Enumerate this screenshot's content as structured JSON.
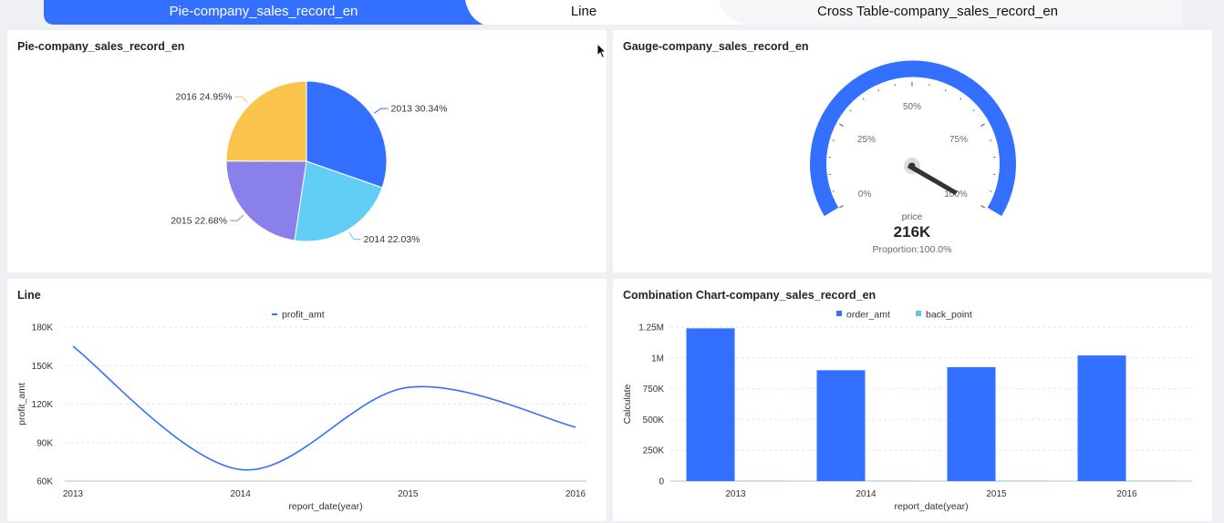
{
  "tabs": [
    {
      "label": "Pie-company_sales_record_en",
      "active": true
    },
    {
      "label": "Line",
      "active": false
    },
    {
      "label": "Cross Table-company_sales_record_en",
      "active": false
    }
  ],
  "colors": {
    "accent": "#3370ff",
    "tab_active": "#3370ff"
  },
  "cards": {
    "pie": {
      "title": "Pie-company_sales_record_en"
    },
    "gauge": {
      "title": "Gauge-company_sales_record_en",
      "tick_labels": [
        "0%",
        "25%",
        "50%",
        "75%",
        "100%"
      ],
      "metric_label": "price",
      "value_text": "216K",
      "proportion_text": "Proportion:100.0%"
    },
    "line": {
      "title": "Line"
    },
    "combo": {
      "title": "Combination Chart-company_sales_record_en"
    }
  },
  "chart_data": [
    {
      "type": "pie",
      "title": "Pie-company_sales_record_en",
      "slices": [
        {
          "label": "2013",
          "percent": 30.34,
          "text": "2013 30.34%",
          "color": "#3370ff"
        },
        {
          "label": "2014",
          "percent": 22.03,
          "text": "2014 22.03%",
          "color": "#62cdf5"
        },
        {
          "label": "2015",
          "percent": 22.68,
          "text": "2015 22.68%",
          "color": "#8a80eb"
        },
        {
          "label": "2016",
          "percent": 24.95,
          "text": "2016 24.95%",
          "color": "#fac34b"
        }
      ]
    },
    {
      "type": "gauge",
      "title": "Gauge-company_sales_record_en",
      "metric": "price",
      "value": "216K",
      "proportion": 1.0,
      "ticks": [
        "0%",
        "25%",
        "50%",
        "75%",
        "100%"
      ]
    },
    {
      "type": "line",
      "title": "Line",
      "categories": [
        "2013",
        "2014",
        "2015",
        "2016"
      ],
      "series": [
        {
          "name": "profit_amt",
          "values": [
            165000,
            69000,
            133000,
            102000
          ],
          "color": "#3370ff"
        }
      ],
      "xlabel": "report_date(year)",
      "ylabel": "profit_amt",
      "ylim": [
        60000,
        180000
      ],
      "yticks": [
        {
          "v": 60000,
          "label": "60K"
        },
        {
          "v": 90000,
          "label": "90K"
        },
        {
          "v": 120000,
          "label": "120K"
        },
        {
          "v": 150000,
          "label": "150K"
        },
        {
          "v": 180000,
          "label": "180K"
        }
      ],
      "legend": "top-center",
      "grid": true
    },
    {
      "type": "bar",
      "title": "Combination Chart-company_sales_record_en",
      "categories": [
        "2013",
        "2014",
        "2015",
        "2016"
      ],
      "series": [
        {
          "name": "order_amt",
          "values": [
            1240000,
            900000,
            925000,
            1020000
          ],
          "color": "#3370ff"
        },
        {
          "name": "back_point",
          "values": [
            2000,
            2000,
            2000,
            2000
          ],
          "color": "#62c2f0"
        }
      ],
      "xlabel": "report_date(year)",
      "ylabel": "Calculate",
      "ylim": [
        0,
        1250000
      ],
      "yticks": [
        {
          "v": 0,
          "label": "0"
        },
        {
          "v": 250000,
          "label": "250K"
        },
        {
          "v": 500000,
          "label": "500K"
        },
        {
          "v": 750000,
          "label": "750K"
        },
        {
          "v": 1000000,
          "label": "1M"
        },
        {
          "v": 1250000,
          "label": "1.25M"
        }
      ],
      "legend": "top-center",
      "grid": true
    }
  ]
}
